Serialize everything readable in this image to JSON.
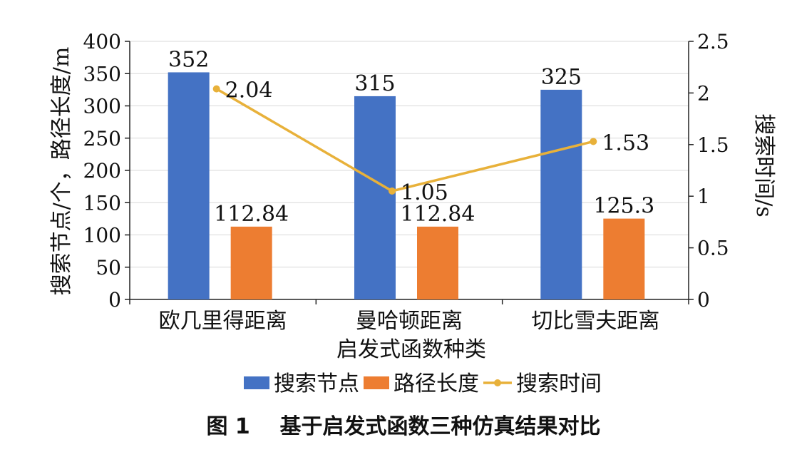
{
  "chart_data": {
    "type": "bar",
    "categories": [
      "欧几里得距离",
      "曼哈顿距离",
      "切比雪夫距离"
    ],
    "xlabel": "启发式函数种类",
    "ylabel": "搜索节点/个，路径长度/m",
    "y2label": "搜索时间/s",
    "ylim": [
      0,
      400
    ],
    "yticks": [
      0,
      50,
      100,
      150,
      200,
      250,
      300,
      350,
      400
    ],
    "y2lim": [
      0,
      2.5
    ],
    "y2ticks": [
      "0",
      "0.5",
      "1",
      "1.5",
      "2",
      "2.5"
    ],
    "grid": true,
    "legend_position": "bottom",
    "series": [
      {
        "name": "搜索节点",
        "kind": "bar",
        "axis": "left",
        "color": "#4472C4",
        "values": [
          352,
          315,
          325
        ],
        "labels": [
          "352",
          "315",
          "325"
        ]
      },
      {
        "name": "路径长度",
        "kind": "bar",
        "axis": "left",
        "color": "#ED7D31",
        "values": [
          112.84,
          112.84,
          125.3
        ],
        "labels": [
          "112.84",
          "112.84",
          "125.3"
        ]
      },
      {
        "name": "搜索时间",
        "kind": "line",
        "axis": "right",
        "color": "#E8B13A",
        "values": [
          2.04,
          1.05,
          1.53
        ],
        "labels": [
          "2.04",
          "1.05",
          "1.53"
        ]
      }
    ]
  },
  "figure_caption": "图 1    基于启发式函数三种仿真结果对比"
}
